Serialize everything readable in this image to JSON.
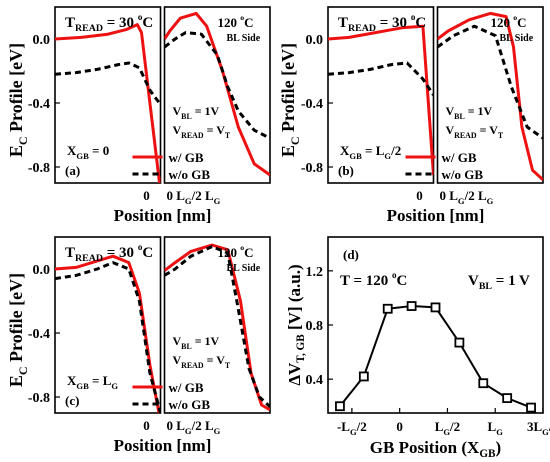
{
  "figure": {
    "shared_ylabel": {
      "main": "E",
      "sub": "C",
      "rest": " Profile [eV]"
    },
    "xlabel": "Position [nm]",
    "left_temp": {
      "t": "T",
      "sub": "READ",
      "rest": " = 30 ",
      "deg": "o",
      "unit": "C"
    },
    "right_temp": {
      "num": "120 ",
      "deg": "o",
      "unit": "C"
    },
    "bl_side": "BL Side",
    "vbl": {
      "v": "V",
      "sub": "BL",
      "rest": " = 1V"
    },
    "vread": {
      "v": "V",
      "sub": "READ",
      "rest": " = V",
      "sub2": "T"
    },
    "legend_with": "w/   GB",
    "legend_without": "w/o GB",
    "yticks": [
      "0.0",
      "-0.4",
      "-0.8"
    ],
    "xtick_left": "0",
    "xtick_right": {
      "a": "0 L",
      "asub": "G",
      "b": "/2 L",
      "bsub": "G"
    },
    "colors": {
      "with_gb": "#ee1111",
      "without_gb": "#000000"
    }
  },
  "panels": [
    {
      "tag": "(a)",
      "xgb": {
        "x": "X",
        "sub": "GB",
        "rest": " = 0"
      }
    },
    {
      "tag": "(b)",
      "xgb": {
        "x": "X",
        "sub": "GB",
        "rest": " = L",
        "sub2": "G",
        "rest2": "/2"
      }
    },
    {
      "tag": "(c)",
      "xgb": {
        "x": "X",
        "sub": "GB",
        "rest": " = L",
        "sub2": "G"
      }
    }
  ],
  "panel_d": {
    "tag": "(d)",
    "temp": {
      "pre": "T = 120 ",
      "deg": "o",
      "unit": "C"
    },
    "vbl": {
      "v": "V",
      "sub": "BL",
      "rest": " = 1 V"
    },
    "ylabel": {
      "a": "ΔV",
      "sub": "T, GB",
      "rest": " [V] (a.u.)"
    },
    "xlabel": {
      "a": "GB Position (X",
      "sub": "GB",
      "rest": ")"
    },
    "yticks": [
      "1.2",
      "0.8",
      "0.4"
    ],
    "xticks": [
      {
        "a": "-L",
        "sub": "G",
        "rest": "/2"
      },
      {
        "a": "0",
        "sub": "",
        "rest": ""
      },
      {
        "a": "L",
        "sub": "G",
        "rest": "/2"
      },
      {
        "a": "L",
        "sub": "G",
        "rest": ""
      },
      {
        "a": "3L",
        "sub": "G",
        "rest": "/2"
      }
    ]
  },
  "chart_data": [
    {
      "type": "line",
      "title": "(a)",
      "xlabel": "Position [nm]",
      "ylabel": "EC Profile [eV]",
      "ylim": [
        -0.9,
        0.2
      ],
      "series": [
        {
          "name": "w/ GB",
          "left": {
            "x": [
              0,
              0.25,
              0.5,
              0.68,
              0.78,
              0.82,
              0.9,
              1.0
            ],
            "y": [
              0.0,
              0.01,
              0.03,
              0.06,
              0.09,
              0.04,
              -0.4,
              -0.95
            ]
          },
          "right": {
            "x": [
              0,
              0.05,
              0.15,
              0.3,
              0.4,
              0.55,
              0.7,
              0.85,
              1.0
            ],
            "y": [
              0.0,
              0.05,
              0.13,
              0.16,
              0.08,
              -0.2,
              -0.55,
              -0.78,
              -0.85
            ]
          }
        },
        {
          "name": "w/o GB",
          "left": {
            "x": [
              0,
              0.2,
              0.4,
              0.6,
              0.7,
              0.8,
              0.9,
              1.0
            ],
            "y": [
              -0.22,
              -0.21,
              -0.19,
              -0.16,
              -0.15,
              -0.18,
              -0.32,
              -0.41
            ]
          },
          "right": {
            "x": [
              0,
              0.1,
              0.2,
              0.35,
              0.5,
              0.6,
              0.7,
              0.85,
              1.0
            ],
            "y": [
              -0.05,
              0.0,
              0.04,
              0.03,
              -0.1,
              -0.3,
              -0.45,
              -0.57,
              -0.62
            ]
          }
        }
      ]
    },
    {
      "type": "line",
      "title": "(b)",
      "xlabel": "Position [nm]",
      "ylabel": "EC Profile [eV]",
      "ylim": [
        -0.9,
        0.2
      ],
      "series": [
        {
          "name": "w/ GB",
          "left": {
            "x": [
              0,
              0.2,
              0.45,
              0.7,
              0.9,
              1.0
            ],
            "y": [
              0.0,
              0.01,
              0.04,
              0.07,
              0.08,
              -0.85
            ]
          },
          "right": {
            "x": [
              0,
              0.1,
              0.3,
              0.5,
              0.65,
              0.72,
              0.8,
              0.9,
              1.0
            ],
            "y": [
              0.0,
              0.05,
              0.12,
              0.16,
              0.14,
              -0.05,
              -0.55,
              -0.82,
              -0.88
            ]
          }
        },
        {
          "name": "w/o GB",
          "left": {
            "x": [
              0,
              0.2,
              0.4,
              0.6,
              0.75,
              0.9,
              1.0
            ],
            "y": [
              -0.22,
              -0.21,
              -0.19,
              -0.16,
              -0.15,
              -0.25,
              -0.35
            ]
          },
          "right": {
            "x": [
              0,
              0.15,
              0.35,
              0.55,
              0.7,
              0.85,
              1.0
            ],
            "y": [
              -0.05,
              0.02,
              0.08,
              0.02,
              -0.3,
              -0.55,
              -0.62
            ]
          }
        }
      ]
    },
    {
      "type": "line",
      "title": "(c)",
      "xlabel": "Position [nm]",
      "ylabel": "EC Profile [eV]",
      "ylim": [
        -0.9,
        0.2
      ],
      "series": [
        {
          "name": "w/ GB",
          "left": {
            "x": [
              0,
              0.2,
              0.4,
              0.55,
              0.7,
              0.8,
              0.9,
              1.0
            ],
            "y": [
              0.0,
              0.01,
              0.05,
              0.08,
              0.04,
              -0.15,
              -0.6,
              -0.95
            ]
          },
          "right": {
            "x": [
              0,
              0.1,
              0.25,
              0.45,
              0.6,
              0.72,
              0.82,
              0.92,
              1.0
            ],
            "y": [
              -0.01,
              0.04,
              0.11,
              0.15,
              0.12,
              -0.2,
              -0.65,
              -0.85,
              -0.88
            ]
          }
        },
        {
          "name": "w/o GB",
          "left": {
            "x": [
              0,
              0.2,
              0.4,
              0.55,
              0.7,
              0.8,
              0.9,
              1.0
            ],
            "y": [
              -0.06,
              -0.04,
              0.0,
              0.04,
              0.0,
              -0.2,
              -0.65,
              -0.9
            ]
          },
          "right": {
            "x": [
              0,
              0.1,
              0.25,
              0.45,
              0.6,
              0.7,
              0.8,
              0.9,
              1.0
            ],
            "y": [
              -0.04,
              0.0,
              0.08,
              0.14,
              0.1,
              -0.25,
              -0.62,
              -0.8,
              -0.86
            ]
          }
        }
      ]
    },
    {
      "type": "line",
      "title": "(d)",
      "xlabel": "GB Position (XGB)",
      "ylabel": "ΔVT, GB [V] (a.u.)",
      "ylim": [
        0.15,
        1.45
      ],
      "x": [
        -0.625,
        -0.375,
        -0.125,
        0.125,
        0.375,
        0.625,
        0.875,
        1.125,
        1.375
      ],
      "series": [
        {
          "name": "",
          "values": [
            0.2,
            0.42,
            0.92,
            0.94,
            0.93,
            0.67,
            0.37,
            0.26,
            0.19
          ]
        }
      ],
      "xticks": [
        "-LG/2",
        "0",
        "LG/2",
        "LG",
        "3LG/2"
      ],
      "xtick_values": [
        -0.5,
        0,
        0.5,
        1,
        1.5
      ]
    }
  ]
}
